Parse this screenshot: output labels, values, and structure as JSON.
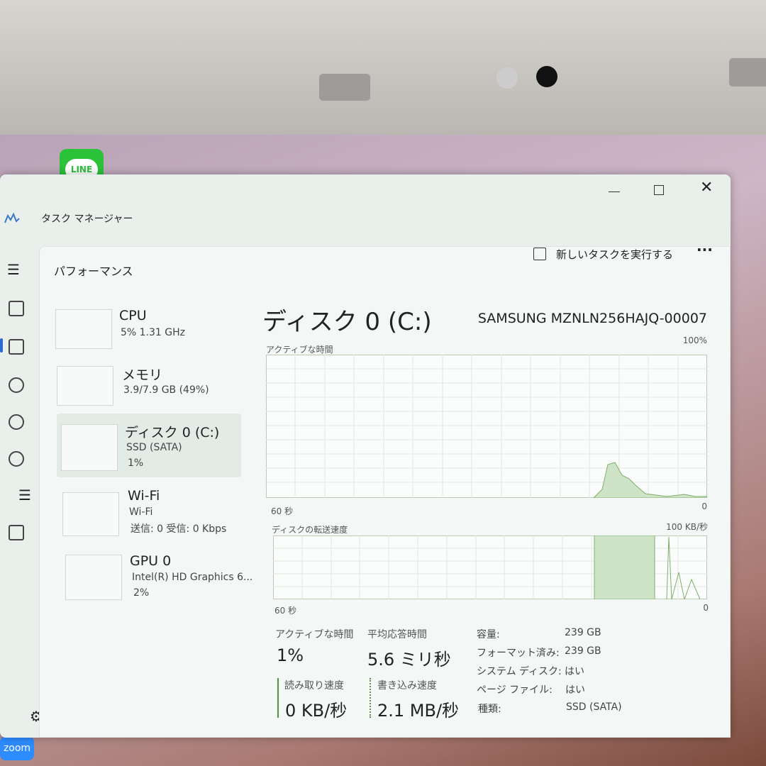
{
  "desktop": {
    "icons": [
      "LINE",
      "zoom"
    ]
  },
  "window": {
    "title": "タスク マネージャー"
  },
  "header": {
    "title": "パフォーマンス",
    "run_task": "新しいタスクを実行する"
  },
  "sidebar": [
    {
      "name": "CPU",
      "detail": "5%  1.31 GHz"
    },
    {
      "name": "メモリ",
      "detail": "3.9/7.9 GB (49%)"
    },
    {
      "name": "ディスク 0 (C:)",
      "detail": "SSD (SATA)",
      "detail2": "1%"
    },
    {
      "name": "Wi-Fi",
      "detail": "Wi-Fi",
      "detail2": "送信: 0  受信: 0 Kbps"
    },
    {
      "name": "GPU 0",
      "detail": "Intel(R) HD Graphics 6...",
      "detail2": "2%"
    }
  ],
  "detail": {
    "title": "ディスク 0 (C:)",
    "model": "SAMSUNG MZNLN256HAJQ-00007",
    "graph1": {
      "label": "アクティブな時間",
      "max": "100%",
      "time": "60 秒",
      "min": "0"
    },
    "graph2": {
      "label": "ディスクの転送速度",
      "max": "100 KB/秒",
      "time": "60 秒",
      "min": "0"
    },
    "stats": [
      {
        "label": "アクティブな時間",
        "value": "1%"
      },
      {
        "label": "平均応答時間",
        "value": "5.6 ミリ秒"
      },
      {
        "label": "読み取り速度",
        "value": "0 KB/秒"
      },
      {
        "label": "書き込み速度",
        "value": "2.1 MB/秒"
      }
    ],
    "properties": [
      {
        "label": "容量:",
        "value": "239 GB"
      },
      {
        "label": "フォーマット済み:",
        "value": "239 GB"
      },
      {
        "label": "システム ディスク:",
        "value": "はい"
      },
      {
        "label": "ページ ファイル:",
        "value": "はい"
      },
      {
        "label": "種類:",
        "value": "SSD (SATA)"
      }
    ]
  }
}
